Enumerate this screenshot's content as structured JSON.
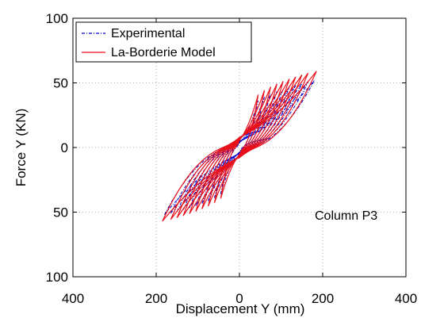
{
  "chart_data": {
    "type": "line",
    "title": "",
    "xlabel": "Displacement Y (mm)",
    "ylabel": "Force Y (KN)",
    "xlim": [
      -400,
      400
    ],
    "ylim": [
      -100,
      100
    ],
    "xticks": [
      -400,
      -200,
      0,
      200,
      400
    ],
    "xtick_labels": [
      "400",
      "200",
      "0",
      "200",
      "400"
    ],
    "yticks": [
      100,
      50,
      0,
      -50,
      -100
    ],
    "ytick_labels": [
      "100",
      "50",
      "0",
      "50",
      "100"
    ],
    "grid": true,
    "legend_position": "top-left",
    "annotation": "Column P3",
    "series": [
      {
        "name": "Experimental",
        "color": "#0000cc",
        "style": "dash-dot",
        "amplitudes": [
          45,
          60,
          75,
          90,
          105,
          120,
          135,
          150,
          165,
          180
        ],
        "peak_force_pos": 52,
        "peak_force_neg": -52,
        "width_factor": 0.42
      },
      {
        "name": "La-Borderie Model",
        "color": "#e8101a",
        "style": "solid",
        "amplitudes": [
          45,
          60,
          75,
          90,
          105,
          120,
          135,
          150,
          165,
          185
        ],
        "peak_force_pos": 59,
        "peak_force_neg": -57,
        "width_factor": 0.55
      }
    ]
  }
}
